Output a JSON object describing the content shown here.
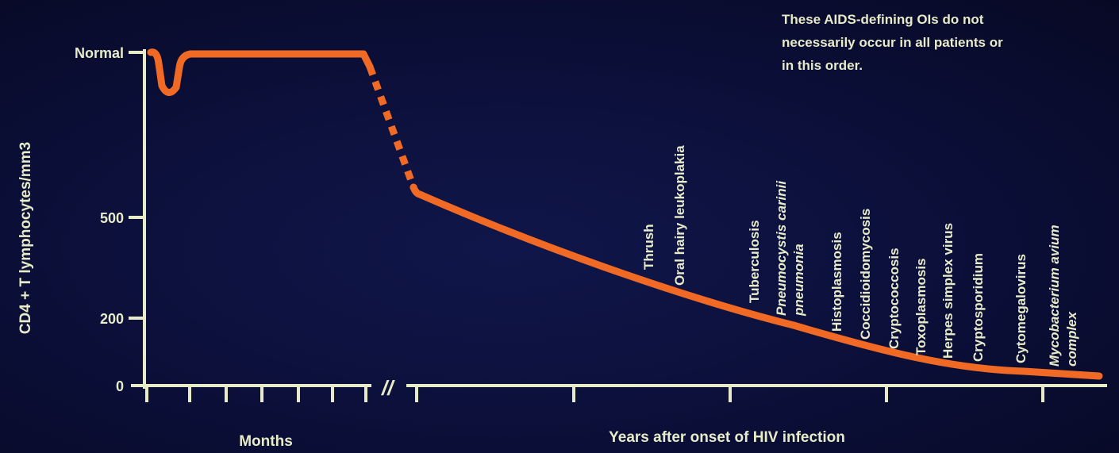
{
  "chart_data": {
    "type": "line",
    "title": "",
    "ylabel": "CD4 + T lymphocytes/mm3",
    "xlabel_left": "Months",
    "xlabel_right": "Years after onset of HIV infection",
    "axis_break_marker": "//",
    "y_tick_labels": [
      "Normal",
      "500",
      "200",
      "0"
    ],
    "note": [
      "These AIDS-defining OIs do not",
      "necessarily occur in all patients or",
      "in this order."
    ],
    "grid": false,
    "legend": "none",
    "series_color": "#f06a25",
    "axis_color": "#e7ebc8",
    "opportunistic_infections": [
      {
        "lines": [
          "Thrush"
        ],
        "italic": false
      },
      {
        "lines": [
          "Oral hairy leukoplakia"
        ],
        "italic": false
      },
      {
        "lines": [
          "Tuberculosis"
        ],
        "italic": false
      },
      {
        "lines": [
          "Pneumocystis carinii",
          "pneumonia"
        ],
        "italic": true
      },
      {
        "lines": [
          "Histoplasmosis"
        ],
        "italic": false
      },
      {
        "lines": [
          "Coccidioidomycosis"
        ],
        "italic": false
      },
      {
        "lines": [
          "Cryptococcosis"
        ],
        "italic": false
      },
      {
        "lines": [
          "Toxoplasmosis"
        ],
        "italic": false
      },
      {
        "lines": [
          "Herpes simplex virus"
        ],
        "italic": false
      },
      {
        "lines": [
          "Cryptosporidium"
        ],
        "italic": false
      },
      {
        "lines": [
          "Cytomegalovirus"
        ],
        "italic": false
      },
      {
        "lines": [
          "Mycobacterium avium",
          "complex"
        ],
        "italic": true
      }
    ]
  }
}
